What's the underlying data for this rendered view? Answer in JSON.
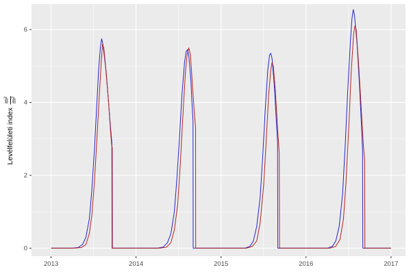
{
  "axis": {
    "y_title": "Levélfelületi index",
    "y_unit_numerator": "m²",
    "y_unit_denominator": "m²"
  },
  "chart_data": {
    "type": "line",
    "title": "",
    "xlabel": "",
    "ylabel": "Levélfelületi index (m²/m²)",
    "xlim": [
      2012.77,
      2017.17
    ],
    "ylim": [
      -0.22,
      6.7
    ],
    "grid": true,
    "legend_position": "none",
    "x_ticks": [
      {
        "v": 2013,
        "label": "2013"
      },
      {
        "v": 2014,
        "label": "2014"
      },
      {
        "v": 2015,
        "label": "2015"
      },
      {
        "v": 2016,
        "label": "2016"
      },
      {
        "v": 2017,
        "label": "2017"
      }
    ],
    "x_minor": [
      2013.5,
      2014.5,
      2015.5,
      2016.5
    ],
    "y_ticks": [
      {
        "v": 0,
        "label": "0"
      },
      {
        "v": 2,
        "label": "2"
      },
      {
        "v": 4,
        "label": "4"
      },
      {
        "v": 6,
        "label": "6"
      }
    ],
    "y_minor": [
      1,
      3,
      5
    ],
    "colors": {
      "figure_bg": "#FFFFFF",
      "panel_bg": "#EBEBEB",
      "grid_major": "#FFFFFF",
      "grid_minor": "#FFFFFF",
      "tick_mark": "#333333",
      "tick_label": "#4D4D4D",
      "axis_title": "#000000"
    },
    "series": [
      {
        "name": "blue-series",
        "color": "#2222CC",
        "points": [
          [
            2013.0,
            0
          ],
          [
            2013.25,
            0
          ],
          [
            2013.32,
            0.02
          ],
          [
            2013.37,
            0.1
          ],
          [
            2013.41,
            0.3
          ],
          [
            2013.45,
            0.8
          ],
          [
            2013.48,
            1.6
          ],
          [
            2013.51,
            2.7
          ],
          [
            2013.54,
            4.0
          ],
          [
            2013.56,
            4.9
          ],
          [
            2013.58,
            5.5
          ],
          [
            2013.595,
            5.75
          ],
          [
            2013.61,
            5.6
          ],
          [
            2013.64,
            5.0
          ],
          [
            2013.67,
            4.2
          ],
          [
            2013.7,
            3.3
          ],
          [
            2013.715,
            2.9
          ],
          [
            2013.718,
            0
          ],
          [
            2013.9,
            0
          ],
          [
            2014.25,
            0
          ],
          [
            2014.32,
            0.03
          ],
          [
            2014.37,
            0.15
          ],
          [
            2014.41,
            0.4
          ],
          [
            2014.45,
            1.0
          ],
          [
            2014.48,
            1.9
          ],
          [
            2014.51,
            3.0
          ],
          [
            2014.54,
            4.2
          ],
          [
            2014.57,
            5.1
          ],
          [
            2014.59,
            5.4
          ],
          [
            2014.605,
            5.45
          ],
          [
            2014.62,
            5.3
          ],
          [
            2014.645,
            4.6
          ],
          [
            2014.66,
            3.9
          ],
          [
            2014.67,
            3.5
          ],
          [
            2014.672,
            0
          ],
          [
            2014.9,
            0
          ],
          [
            2015.28,
            0
          ],
          [
            2015.34,
            0.05
          ],
          [
            2015.38,
            0.2
          ],
          [
            2015.42,
            0.6
          ],
          [
            2015.46,
            1.4
          ],
          [
            2015.49,
            2.5
          ],
          [
            2015.52,
            3.8
          ],
          [
            2015.55,
            4.9
          ],
          [
            2015.57,
            5.3
          ],
          [
            2015.585,
            5.35
          ],
          [
            2015.6,
            5.2
          ],
          [
            2015.625,
            4.5
          ],
          [
            2015.65,
            3.5
          ],
          [
            2015.665,
            2.9
          ],
          [
            2015.668,
            0
          ],
          [
            2015.9,
            0
          ],
          [
            2016.25,
            0
          ],
          [
            2016.31,
            0.05
          ],
          [
            2016.35,
            0.2
          ],
          [
            2016.39,
            0.6
          ],
          [
            2016.43,
            1.5
          ],
          [
            2016.46,
            2.8
          ],
          [
            2016.49,
            4.3
          ],
          [
            2016.52,
            5.6
          ],
          [
            2016.54,
            6.3
          ],
          [
            2016.555,
            6.55
          ],
          [
            2016.57,
            6.4
          ],
          [
            2016.6,
            5.6
          ],
          [
            2016.63,
            4.4
          ],
          [
            2016.655,
            3.2
          ],
          [
            2016.665,
            2.7
          ],
          [
            2016.668,
            0
          ],
          [
            2017.0,
            0
          ]
        ]
      },
      {
        "name": "red-series",
        "color": "#B22222",
        "points": [
          [
            2013.0,
            0
          ],
          [
            2013.28,
            0
          ],
          [
            2013.36,
            0.02
          ],
          [
            2013.41,
            0.1
          ],
          [
            2013.45,
            0.4
          ],
          [
            2013.48,
            0.9
          ],
          [
            2013.51,
            1.8
          ],
          [
            2013.54,
            3.0
          ],
          [
            2013.57,
            4.3
          ],
          [
            2013.59,
            5.1
          ],
          [
            2013.605,
            5.6
          ],
          [
            2013.62,
            5.5
          ],
          [
            2013.65,
            4.8
          ],
          [
            2013.68,
            3.9
          ],
          [
            2013.7,
            3.2
          ],
          [
            2013.712,
            2.85
          ],
          [
            2013.72,
            2.75
          ],
          [
            2013.722,
            0
          ],
          [
            2013.9,
            0
          ],
          [
            2014.28,
            0
          ],
          [
            2014.36,
            0.03
          ],
          [
            2014.41,
            0.15
          ],
          [
            2014.45,
            0.5
          ],
          [
            2014.49,
            1.2
          ],
          [
            2014.52,
            2.3
          ],
          [
            2014.55,
            3.6
          ],
          [
            2014.58,
            4.8
          ],
          [
            2014.6,
            5.3
          ],
          [
            2014.62,
            5.5
          ],
          [
            2014.64,
            5.3
          ],
          [
            2014.66,
            4.6
          ],
          [
            2014.68,
            3.9
          ],
          [
            2014.7,
            3.3
          ],
          [
            2014.702,
            0
          ],
          [
            2014.9,
            0
          ],
          [
            2015.3,
            0
          ],
          [
            2015.37,
            0.05
          ],
          [
            2015.42,
            0.2
          ],
          [
            2015.46,
            0.7
          ],
          [
            2015.5,
            1.7
          ],
          [
            2015.53,
            2.9
          ],
          [
            2015.56,
            4.2
          ],
          [
            2015.585,
            4.9
          ],
          [
            2015.6,
            5.1
          ],
          [
            2015.615,
            5.0
          ],
          [
            2015.64,
            4.3
          ],
          [
            2015.665,
            3.3
          ],
          [
            2015.685,
            2.6
          ],
          [
            2015.688,
            0
          ],
          [
            2015.9,
            0
          ],
          [
            2016.28,
            0
          ],
          [
            2016.35,
            0.05
          ],
          [
            2016.4,
            0.25
          ],
          [
            2016.44,
            0.8
          ],
          [
            2016.47,
            1.8
          ],
          [
            2016.5,
            3.2
          ],
          [
            2016.53,
            4.8
          ],
          [
            2016.56,
            5.9
          ],
          [
            2016.575,
            6.1
          ],
          [
            2016.59,
            6.0
          ],
          [
            2016.62,
            5.0
          ],
          [
            2016.65,
            3.8
          ],
          [
            2016.675,
            2.8
          ],
          [
            2016.69,
            2.4
          ],
          [
            2016.692,
            0
          ],
          [
            2017.0,
            0
          ]
        ]
      }
    ]
  }
}
